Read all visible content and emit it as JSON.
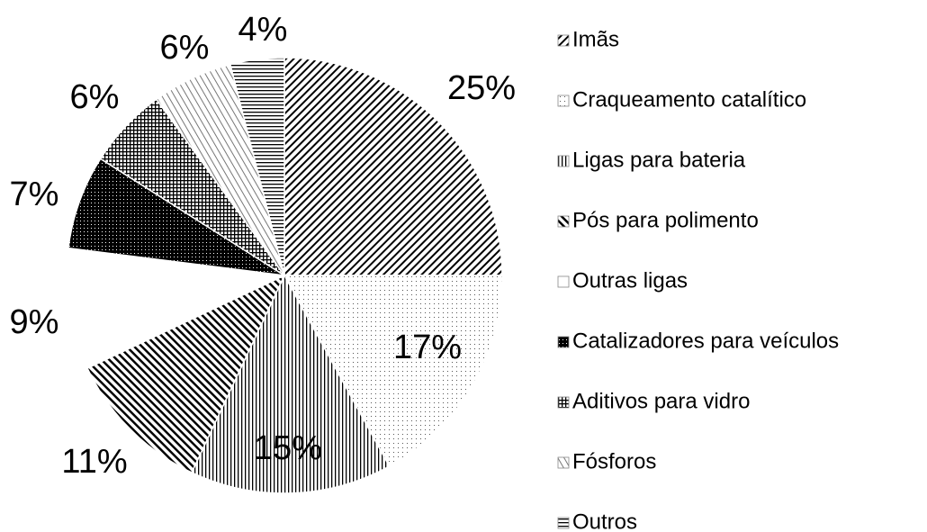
{
  "chart_data": {
    "type": "pie",
    "categories": [
      "Imãs",
      "Craqueamento catalítico",
      "Ligas para bateria",
      "Pós para polimento",
      "Outras ligas",
      "Catalizadores para veículos",
      "Aditivos para vidro",
      "Fósforos",
      "Outros"
    ],
    "values": [
      25,
      17,
      15,
      11,
      9,
      7,
      6,
      6,
      4
    ],
    "value_labels": [
      "25%",
      "17%",
      "15%",
      "11%",
      "9%",
      "7%",
      "6%",
      "6%",
      "4%"
    ],
    "legend": "right"
  }
}
